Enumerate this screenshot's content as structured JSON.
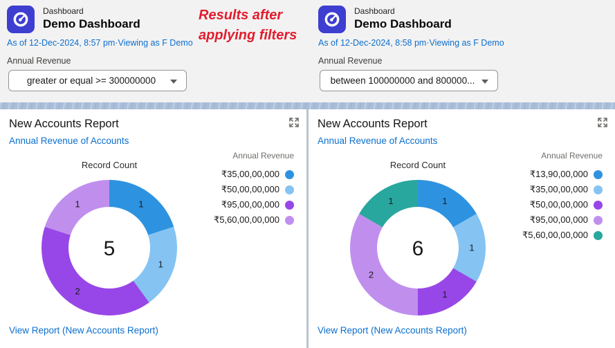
{
  "annotation": {
    "line1": "Results after",
    "line2": "applying filters",
    "color": "#e11d2e"
  },
  "colors": {
    "link_blue": "#0b6fce",
    "icon_bg": "#3e3ed1",
    "strip_blue": "#a9bed9",
    "divider": "#b9c3ce"
  },
  "dashboards": [
    {
      "app_label": "Dashboard",
      "title": "Demo Dashboard",
      "as_of": "As of 12-Dec-2024, 8:57 pm·Viewing as F Demo",
      "filter_label": "Annual Revenue",
      "filter_value": "greater or equal >= 300000000",
      "panel_title": "New Accounts Report",
      "panel_subtitle": "Annual Revenue of Accounts",
      "view_report": "View Report (New Accounts Report)"
    },
    {
      "app_label": "Dashboard",
      "title": "Demo Dashboard",
      "as_of": "As of 12-Dec-2024, 8:58 pm·Viewing as F Demo",
      "filter_label": "Annual Revenue",
      "filter_value": "between 100000000 and 800000...",
      "panel_title": "New Accounts Report",
      "panel_subtitle": "Annual Revenue of Accounts",
      "view_report": "View Report (New Accounts Report)"
    }
  ],
  "chart_data": [
    {
      "type": "pie",
      "variant": "donut",
      "title": "Record Count",
      "legend_title": "Annual Revenue",
      "legend_position": "right",
      "center_total": "5",
      "segments": [
        {
          "label": "₹35,00,00,000",
          "value": 1,
          "color": "#2d93e0"
        },
        {
          "label": "₹50,00,00,000",
          "value": 1,
          "color": "#85c3f2"
        },
        {
          "label": "₹95,00,00,000",
          "value": 2,
          "color": "#9747e8"
        },
        {
          "label": "₹5,60,00,00,000",
          "value": 1,
          "color": "#c08fee"
        }
      ]
    },
    {
      "type": "pie",
      "variant": "donut",
      "title": "Record Count",
      "legend_title": "Annual Revenue",
      "legend_position": "right",
      "center_total": "6",
      "segments": [
        {
          "label": "₹13,90,00,000",
          "value": 1,
          "color": "#2d93e0"
        },
        {
          "label": "₹35,00,00,000",
          "value": 1,
          "color": "#85c3f2"
        },
        {
          "label": "₹50,00,00,000",
          "value": 1,
          "color": "#9747e8"
        },
        {
          "label": "₹95,00,00,000",
          "value": 2,
          "color": "#c08fee"
        },
        {
          "label": "₹5,60,00,00,000",
          "value": 1,
          "color": "#28a79e"
        }
      ]
    }
  ]
}
